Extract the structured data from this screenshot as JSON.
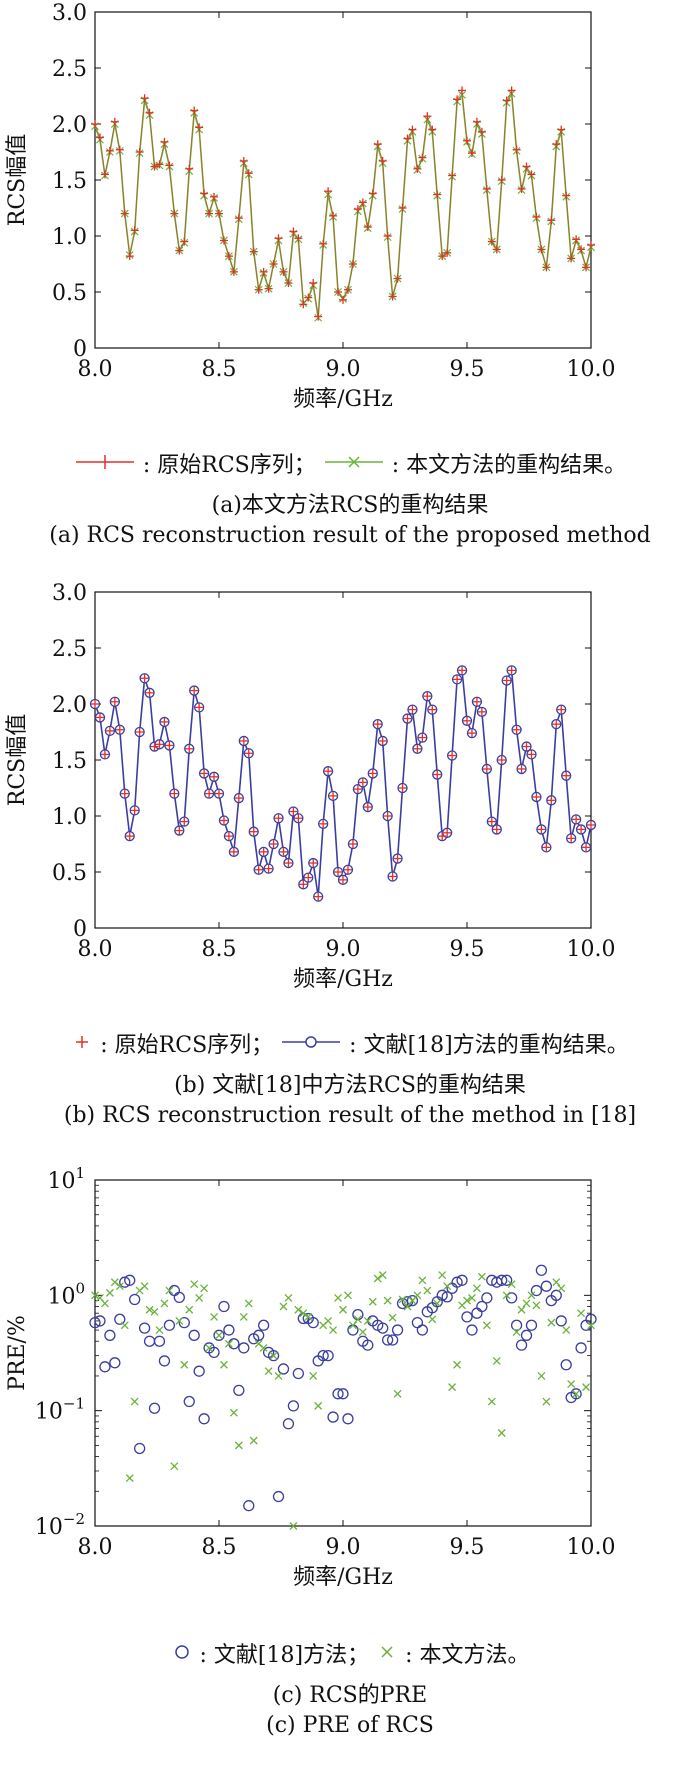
{
  "colors": {
    "orig": "#e0312a",
    "prop": "#6ab23a",
    "ref": "#3a3ea0",
    "axis": "#111111"
  },
  "panels": [
    {
      "id": "a",
      "chart_data": {
        "type": "line",
        "xlabel": "频率/GHz",
        "ylabel": "RCS幅值",
        "xlim": [
          8.0,
          10.0
        ],
        "ylim": [
          0,
          3.0
        ],
        "xticks": [
          "8.0",
          "8.5",
          "9.0",
          "9.5",
          "10.0"
        ],
        "yticks": [
          "0",
          "0.5",
          "1.0",
          "1.5",
          "2.0",
          "2.5",
          "3.0"
        ],
        "x": [
          8.0,
          8.02,
          8.04,
          8.06,
          8.08,
          8.1,
          8.12,
          8.14,
          8.16,
          8.18,
          8.2,
          8.22,
          8.24,
          8.26,
          8.28,
          8.3,
          8.32,
          8.34,
          8.36,
          8.38,
          8.4,
          8.42,
          8.44,
          8.46,
          8.48,
          8.5,
          8.52,
          8.54,
          8.56,
          8.58,
          8.6,
          8.62,
          8.64,
          8.66,
          8.68,
          8.7,
          8.72,
          8.74,
          8.76,
          8.78,
          8.8,
          8.82,
          8.84,
          8.86,
          8.88,
          8.9,
          8.92,
          8.94,
          8.96,
          8.98,
          9.0,
          9.02,
          9.04,
          9.06,
          9.08,
          9.1,
          9.12,
          9.14,
          9.16,
          9.18,
          9.2,
          9.22,
          9.24,
          9.26,
          9.28,
          9.3,
          9.32,
          9.34,
          9.36,
          9.38,
          9.4,
          9.42,
          9.44,
          9.46,
          9.48,
          9.5,
          9.52,
          9.54,
          9.56,
          9.58,
          9.6,
          9.62,
          9.64,
          9.66,
          9.68,
          9.7,
          9.72,
          9.74,
          9.76,
          9.78,
          9.8,
          9.82,
          9.84,
          9.86,
          9.88,
          9.9,
          9.92,
          9.94,
          9.96,
          9.98,
          10.0
        ],
        "series": [
          {
            "name": "原始RCS序列",
            "color": "#e0312a",
            "marker": "plus",
            "values": [
              2.0,
              1.88,
              1.55,
              1.76,
              2.02,
              1.77,
              1.2,
              0.82,
              1.05,
              1.75,
              2.23,
              2.1,
              1.62,
              1.64,
              1.84,
              1.63,
              1.2,
              0.87,
              0.95,
              1.6,
              2.12,
              1.97,
              1.38,
              1.2,
              1.35,
              1.2,
              0.96,
              0.82,
              0.68,
              1.16,
              1.67,
              1.56,
              0.86,
              0.52,
              0.68,
              0.53,
              0.75,
              0.98,
              0.68,
              0.58,
              1.04,
              0.98,
              0.39,
              0.45,
              0.58,
              0.28,
              0.93,
              1.4,
              1.18,
              0.5,
              0.43,
              0.52,
              0.75,
              1.24,
              1.3,
              1.08,
              1.38,
              1.82,
              1.67,
              1.0,
              0.46,
              0.62,
              1.25,
              1.87,
              1.95,
              1.6,
              1.7,
              2.07,
              1.95,
              1.37,
              0.82,
              0.85,
              1.54,
              2.22,
              2.3,
              1.85,
              1.74,
              2.02,
              1.93,
              1.42,
              0.95,
              0.88,
              1.5,
              2.21,
              2.3,
              1.77,
              1.42,
              1.62,
              1.55,
              1.17,
              0.88,
              0.72,
              1.14,
              1.82,
              1.95,
              1.36,
              0.8,
              0.97,
              0.88,
              0.72,
              0.92
            ]
          },
          {
            "name": "本文方法的重构结果",
            "color": "#6ab23a",
            "marker": "x",
            "values": [
              1.98,
              1.86,
              1.54,
              1.75,
              2.0,
              1.76,
              1.2,
              0.83,
              1.04,
              1.74,
              2.21,
              2.08,
              1.62,
              1.63,
              1.82,
              1.62,
              1.2,
              0.87,
              0.94,
              1.58,
              2.1,
              1.95,
              1.36,
              1.2,
              1.34,
              1.2,
              0.96,
              0.82,
              0.68,
              1.15,
              1.65,
              1.55,
              0.86,
              0.52,
              0.67,
              0.53,
              0.75,
              0.96,
              0.68,
              0.58,
              1.02,
              0.97,
              0.4,
              0.44,
              0.56,
              0.27,
              0.92,
              1.37,
              1.17,
              0.5,
              0.44,
              0.52,
              0.75,
              1.22,
              1.29,
              1.07,
              1.36,
              1.8,
              1.65,
              0.99,
              0.46,
              0.62,
              1.24,
              1.85,
              1.93,
              1.59,
              1.69,
              2.04,
              1.93,
              1.36,
              0.82,
              0.85,
              1.53,
              2.2,
              2.26,
              1.84,
              1.73,
              2.0,
              1.91,
              1.41,
              0.95,
              0.88,
              1.49,
              2.19,
              2.27,
              1.76,
              1.41,
              1.6,
              1.54,
              1.16,
              0.88,
              0.72,
              1.13,
              1.8,
              1.93,
              1.35,
              0.8,
              0.96,
              0.87,
              0.72,
              0.9
            ]
          }
        ]
      },
      "legend": {
        "items": [
          {
            "label": "原始RCS序列；"
          },
          {
            "label": "本文方法的重构结果。"
          }
        ]
      },
      "caption_zh": "(a)本文方法RCS的重构结果",
      "caption_en": "(a) RCS reconstruction result of the proposed method"
    },
    {
      "id": "b",
      "chart_data": {
        "type": "line",
        "xlabel": "频率/GHz",
        "ylabel": "RCS幅值",
        "xlim": [
          8.0,
          10.0
        ],
        "ylim": [
          0,
          3.0
        ],
        "xticks": [
          "8.0",
          "8.5",
          "9.0",
          "9.5",
          "10.0"
        ],
        "yticks": [
          "0",
          "0.5",
          "1.0",
          "1.5",
          "2.0",
          "2.5",
          "3.0"
        ],
        "series": [
          {
            "name": "原始RCS序列",
            "color": "#e0312a",
            "marker": "plus",
            "same_as_series_0_of_panel_a": true
          },
          {
            "name": "文献[18]方法的重构结果",
            "color": "#3a3ea0",
            "marker": "circle",
            "same_as_series_0_of_panel_a": true
          }
        ]
      },
      "legend": {
        "items": [
          {
            "label": "原始RCS序列；"
          },
          {
            "label": "文献[18]方法的重构结果。"
          }
        ]
      },
      "caption_zh": "(b) 文献[18]中方法RCS的重构结果",
      "caption_en": "(b) RCS reconstruction result of the method in [18]"
    },
    {
      "id": "c",
      "chart_data": {
        "type": "scatter",
        "xlabel": "频率/GHz",
        "ylabel": "PRE/%",
        "yscale": "log",
        "xlim": [
          8.0,
          10.0
        ],
        "ylim": [
          0.01,
          10
        ],
        "xticks": [
          "8.0",
          "8.5",
          "9.0",
          "9.5",
          "10.0"
        ],
        "series": [
          {
            "name": "文献[18]方法",
            "color": "#3a3ea0",
            "marker": "circle",
            "x": [
              8.0,
              8.02,
              8.04,
              8.06,
              8.08,
              8.1,
              8.12,
              8.14,
              8.16,
              8.18,
              8.2,
              8.22,
              8.24,
              8.26,
              8.28,
              8.3,
              8.32,
              8.34,
              8.36,
              8.38,
              8.4,
              8.42,
              8.44,
              8.46,
              8.48,
              8.5,
              8.52,
              8.54,
              8.56,
              8.58,
              8.6,
              8.62,
              8.64,
              8.66,
              8.68,
              8.7,
              8.72,
              8.74,
              8.76,
              8.78,
              8.8,
              8.82,
              8.84,
              8.86,
              8.88,
              8.9,
              8.92,
              8.94,
              8.96,
              8.98,
              9.0,
              9.02,
              9.04,
              9.06,
              9.08,
              9.1,
              9.12,
              9.14,
              9.16,
              9.18,
              9.2,
              9.22,
              9.24,
              9.26,
              9.28,
              9.3,
              9.32,
              9.34,
              9.36,
              9.38,
              9.4,
              9.42,
              9.44,
              9.46,
              9.48,
              9.5,
              9.52,
              9.54,
              9.56,
              9.58,
              9.6,
              9.62,
              9.64,
              9.66,
              9.68,
              9.7,
              9.72,
              9.74,
              9.76,
              9.78,
              9.8,
              9.82,
              9.84,
              9.86,
              9.88,
              9.9,
              9.92,
              9.94,
              9.96,
              9.98,
              10.0
            ],
            "y": [
              0.58,
              0.6,
              0.24,
              0.45,
              0.26,
              0.62,
              1.3,
              1.35,
              0.92,
              0.047,
              0.52,
              0.4,
              0.105,
              0.4,
              0.27,
              0.55,
              1.1,
              0.96,
              0.58,
              0.12,
              0.45,
              0.22,
              0.085,
              0.35,
              0.32,
              0.45,
              0.8,
              0.5,
              0.38,
              0.15,
              0.35,
              0.015,
              0.42,
              0.45,
              0.55,
              0.32,
              0.3,
              0.018,
              0.23,
              0.077,
              0.11,
              0.21,
              0.63,
              0.63,
              0.58,
              0.27,
              0.3,
              0.3,
              0.088,
              0.14,
              0.14,
              0.085,
              0.5,
              0.68,
              0.4,
              0.37,
              0.6,
              0.55,
              0.52,
              0.41,
              0.41,
              0.5,
              0.85,
              0.88,
              0.9,
              0.58,
              0.5,
              0.72,
              0.78,
              0.88,
              1.0,
              0.97,
              1.15,
              1.3,
              1.35,
              0.65,
              0.5,
              0.7,
              0.8,
              0.95,
              1.35,
              1.3,
              1.35,
              1.35,
              0.95,
              0.55,
              0.37,
              0.45,
              0.55,
              1.1,
              1.65,
              1.2,
              0.9,
              1.0,
              0.6,
              0.25,
              0.13,
              0.14,
              0.35,
              0.55,
              0.62
            ]
          },
          {
            "name": "本文方法",
            "color": "#6ab23a",
            "marker": "x",
            "x": [
              8.0,
              8.02,
              8.04,
              8.06,
              8.08,
              8.1,
              8.12,
              8.14,
              8.16,
              8.18,
              8.2,
              8.22,
              8.24,
              8.26,
              8.28,
              8.3,
              8.32,
              8.34,
              8.36,
              8.38,
              8.4,
              8.42,
              8.44,
              8.46,
              8.48,
              8.5,
              8.52,
              8.54,
              8.56,
              8.58,
              8.6,
              8.62,
              8.64,
              8.66,
              8.68,
              8.7,
              8.72,
              8.74,
              8.76,
              8.78,
              8.8,
              8.82,
              8.84,
              8.86,
              8.88,
              8.9,
              8.92,
              8.94,
              8.96,
              8.98,
              9.0,
              9.02,
              9.04,
              9.06,
              9.08,
              9.1,
              9.12,
              9.14,
              9.16,
              9.18,
              9.2,
              9.22,
              9.24,
              9.26,
              9.28,
              9.3,
              9.32,
              9.34,
              9.36,
              9.38,
              9.4,
              9.42,
              9.44,
              9.46,
              9.48,
              9.5,
              9.52,
              9.54,
              9.56,
              9.58,
              9.6,
              9.62,
              9.64,
              9.66,
              9.68,
              9.7,
              9.72,
              9.74,
              9.76,
              9.78,
              9.8,
              9.82,
              9.84,
              9.86,
              9.88,
              9.9,
              9.92,
              9.94,
              9.96,
              9.98,
              10.0
            ],
            "y": [
              1.0,
              0.95,
              0.85,
              1.05,
              1.3,
              1.2,
              0.55,
              0.026,
              0.12,
              1.1,
              1.2,
              0.75,
              0.72,
              0.5,
              0.85,
              1.1,
              0.033,
              0.6,
              0.25,
              0.75,
              1.25,
              0.95,
              1.15,
              0.35,
              0.65,
              0.45,
              0.25,
              0.38,
              0.096,
              0.05,
              0.65,
              0.85,
              0.055,
              0.38,
              0.35,
              0.22,
              0.3,
              0.2,
              0.8,
              0.95,
              0.01,
              0.75,
              0.7,
              0.65,
              0.2,
              0.11,
              0.55,
              0.6,
              0.5,
              0.95,
              0.75,
              1.0,
              0.55,
              0.62,
              0.48,
              0.6,
              0.88,
              1.4,
              1.5,
              0.9,
              0.64,
              0.14,
              0.92,
              0.8,
              0.9,
              1.0,
              1.35,
              1.1,
              0.62,
              0.85,
              1.5,
              1.2,
              0.16,
              0.25,
              0.82,
              0.9,
              0.95,
              1.15,
              1.45,
              0.55,
              0.12,
              0.27,
              0.064,
              1.0,
              1.25,
              0.48,
              0.75,
              0.85,
              1.0,
              0.82,
              0.2,
              0.12,
              0.58,
              1.3,
              1.15,
              0.5,
              0.17,
              0.14,
              0.7,
              0.16,
              0.55
            ]
          }
        ]
      },
      "legend": {
        "items": [
          {
            "label": "文献[18]方法；"
          },
          {
            "label": "本文方法。"
          }
        ]
      },
      "caption_zh": "(c) RCS的PRE",
      "caption_en": "(c) PRE of RCS"
    }
  ]
}
